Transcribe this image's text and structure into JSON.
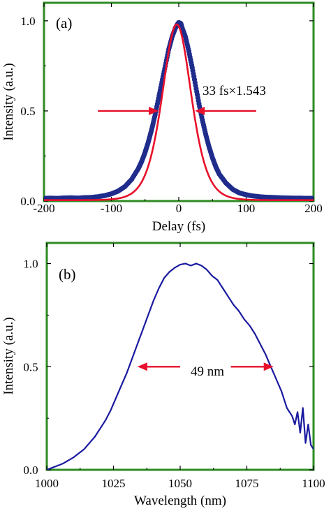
{
  "chart_data": [
    {
      "panel": "(a)",
      "type": "line",
      "xlabel": "Delay (fs)",
      "ylabel": "Intensity (a.u.)",
      "xlim": [
        -200,
        200
      ],
      "ylim": [
        0,
        1.1
      ],
      "xticks": [
        -200,
        -100,
        0,
        100,
        200
      ],
      "yticks": [
        0.0,
        0.5,
        1.0
      ],
      "xtick_labels": [
        "-200",
        "-100",
        "0",
        "100",
        "200"
      ],
      "ytick_labels": [
        "0.0",
        "0.5",
        "1.0"
      ],
      "grid": false,
      "frame_color": "#2e8b22",
      "series": [
        {
          "style": "scatter",
          "color": "#1f2c8c",
          "x": [
            -200,
            -190,
            -180,
            -170,
            -160,
            -150,
            -140,
            -130,
            -120,
            -110,
            -100,
            -90,
            -80,
            -70,
            -60,
            -55,
            -50,
            -45,
            -40,
            -35,
            -30,
            -25,
            -20,
            -15,
            -10,
            -5,
            -2,
            0,
            3,
            5,
            10,
            15,
            20,
            25,
            30,
            35,
            40,
            45,
            50,
            55,
            60,
            70,
            80,
            90,
            100,
            110,
            120,
            130,
            140,
            150,
            160,
            170,
            180,
            190,
            200
          ],
          "y": [
            0.015,
            0.016,
            0.015,
            0.017,
            0.018,
            0.016,
            0.019,
            0.02,
            0.024,
            0.03,
            0.04,
            0.055,
            0.08,
            0.12,
            0.18,
            0.22,
            0.27,
            0.33,
            0.4,
            0.48,
            0.57,
            0.66,
            0.75,
            0.84,
            0.91,
            0.96,
            0.98,
            0.99,
            0.985,
            0.96,
            0.91,
            0.83,
            0.74,
            0.64,
            0.54,
            0.45,
            0.37,
            0.3,
            0.24,
            0.19,
            0.15,
            0.1,
            0.065,
            0.045,
            0.035,
            0.028,
            0.024,
            0.021,
            0.02,
            0.018,
            0.017,
            0.016,
            0.016,
            0.015,
            0.015
          ]
        },
        {
          "style": "line",
          "color": "#e8102a",
          "model": "sech2",
          "center": -3,
          "fwhm_fs": 51,
          "amplitude": 0.975,
          "baseline": 0.005
        }
      ],
      "annotations": [
        {
          "text": "33 fs×1.543",
          "x": 32,
          "y": 0.6
        },
        {
          "type": "fwhm-arrows",
          "y": 0.5,
          "left_from": -120,
          "left_to": -30,
          "right_from": 115,
          "right_to": 24,
          "color": "#e8102a"
        }
      ]
    },
    {
      "panel": "(b)",
      "type": "line",
      "xlabel": "Wavelength (nm)",
      "ylabel": "Intensity (a.u.)",
      "xlim": [
        1000,
        1100
      ],
      "ylim": [
        0,
        1.1
      ],
      "xticks": [
        1000,
        1025,
        1050,
        1075,
        1100
      ],
      "yticks": [
        0.0,
        0.5,
        1.0
      ],
      "xtick_labels": [
        "1000",
        "1025",
        "1050",
        "1075",
        "1100"
      ],
      "ytick_labels": [
        "0.0",
        "0.5",
        "1.0"
      ],
      "grid": false,
      "frame_color": "#2e8b22",
      "series": [
        {
          "style": "line",
          "color": "#1a1aa0",
          "x": [
            1000,
            1002,
            1004,
            1006,
            1008,
            1010,
            1012,
            1014,
            1016,
            1018,
            1020,
            1022,
            1024,
            1026,
            1028,
            1030,
            1032,
            1034,
            1036,
            1038,
            1040,
            1042,
            1044,
            1046,
            1048,
            1050,
            1052,
            1054,
            1056,
            1058,
            1060,
            1062,
            1064,
            1066,
            1068,
            1070,
            1072,
            1074,
            1076,
            1078,
            1080,
            1082,
            1084,
            1086,
            1088,
            1089,
            1090,
            1091,
            1092,
            1093,
            1094,
            1095,
            1096,
            1097,
            1098,
            1099,
            1100
          ],
          "y": [
            0.0,
            0.01,
            0.02,
            0.03,
            0.045,
            0.06,
            0.08,
            0.1,
            0.13,
            0.16,
            0.2,
            0.24,
            0.29,
            0.35,
            0.41,
            0.47,
            0.54,
            0.61,
            0.68,
            0.75,
            0.82,
            0.88,
            0.93,
            0.96,
            0.98,
            0.995,
            1.0,
            0.99,
            1.0,
            0.99,
            0.97,
            0.94,
            0.92,
            0.88,
            0.84,
            0.8,
            0.77,
            0.73,
            0.7,
            0.66,
            0.61,
            0.56,
            0.5,
            0.44,
            0.38,
            0.34,
            0.3,
            0.28,
            0.26,
            0.22,
            0.28,
            0.18,
            0.3,
            0.13,
            0.22,
            0.12,
            0.1
          ]
        }
      ],
      "annotations": [
        {
          "text": "49 nm",
          "x": 1057,
          "y": 0.5
        },
        {
          "type": "fwhm-arrows",
          "y": 0.5,
          "left_from": 1050,
          "left_to": 1034,
          "right_from": 1069,
          "right_to": 1085,
          "color": "#e8102a"
        }
      ]
    }
  ]
}
